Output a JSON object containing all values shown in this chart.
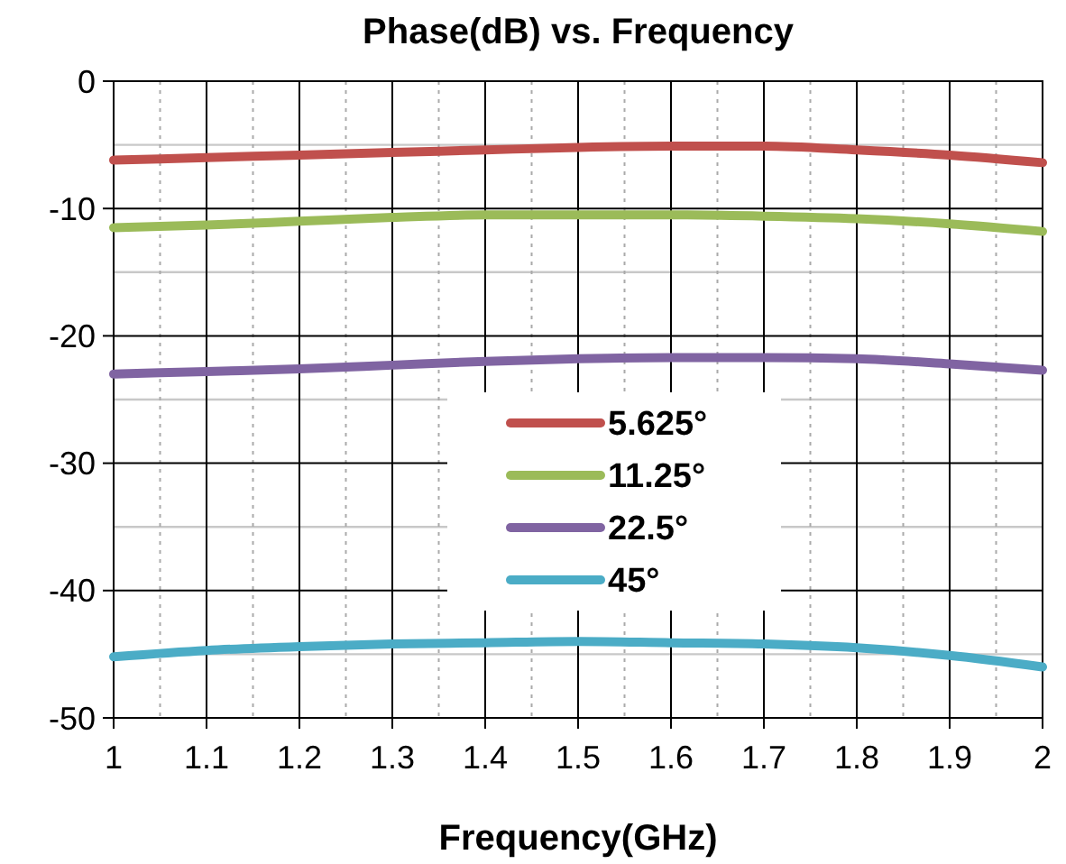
{
  "chart_data": {
    "type": "line",
    "title": "Phase(dB) vs. Frequency",
    "xlabel": "Frequency(GHz)",
    "x": [
      1,
      1.1,
      1.2,
      1.3,
      1.4,
      1.5,
      1.6,
      1.7,
      1.8,
      1.9,
      2
    ],
    "series": [
      {
        "name": "5.625°",
        "color": "#c0504d",
        "values": [
          -6.2,
          -6.0,
          -5.8,
          -5.6,
          -5.4,
          -5.2,
          -5.1,
          -5.1,
          -5.4,
          -5.8,
          -6.4
        ]
      },
      {
        "name": "11.25°",
        "color": "#9bbb59",
        "values": [
          -11.5,
          -11.3,
          -11.0,
          -10.7,
          -10.5,
          -10.5,
          -10.5,
          -10.6,
          -10.8,
          -11.2,
          -11.8
        ]
      },
      {
        "name": "22.5°",
        "color": "#8064a2",
        "values": [
          -23.0,
          -22.8,
          -22.6,
          -22.3,
          -22.0,
          -21.8,
          -21.7,
          -21.7,
          -21.8,
          -22.2,
          -22.7
        ]
      },
      {
        "name": "45°",
        "color": "#4bacc6",
        "values": [
          -45.2,
          -44.7,
          -44.4,
          -44.2,
          -44.1,
          -44.0,
          -44.1,
          -44.2,
          -44.5,
          -45.1,
          -46.0
        ]
      }
    ],
    "xlim": [
      1,
      2
    ],
    "xticks": [
      1,
      1.1,
      1.2,
      1.3,
      1.4,
      1.5,
      1.6,
      1.7,
      1.8,
      1.9,
      2
    ],
    "ylim": [
      -50,
      0
    ],
    "yticks": [
      -50,
      -40,
      -30,
      -20,
      -10,
      0
    ],
    "grid": true,
    "legend": "center",
    "marker": "none",
    "line_style": "solid"
  }
}
